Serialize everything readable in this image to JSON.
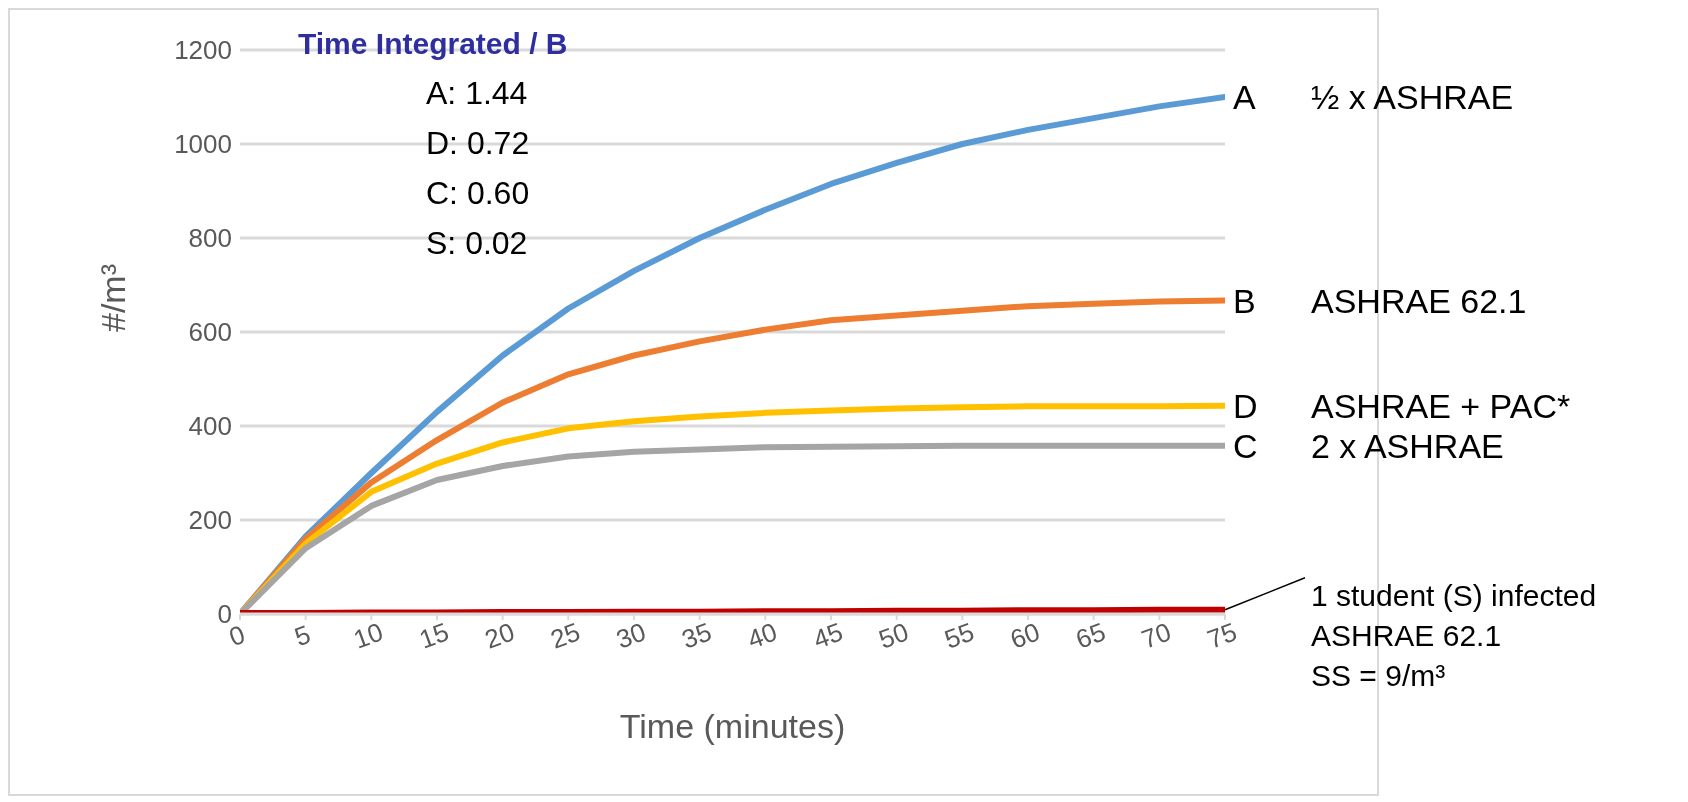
{
  "chart_data": {
    "type": "line",
    "title": "Time Integrated / B",
    "xlabel": "Time (minutes)",
    "ylabel": "#/m³",
    "x": [
      0,
      5,
      10,
      15,
      20,
      25,
      30,
      35,
      40,
      45,
      50,
      55,
      60,
      65,
      70,
      75
    ],
    "series": [
      {
        "name": "A",
        "color": "#5b9bd5",
        "values": [
          0,
          165,
          300,
          430,
          550,
          650,
          730,
          800,
          860,
          915,
          960,
          1000,
          1030,
          1055,
          1080,
          1100
        ]
      },
      {
        "name": "B",
        "color": "#ed7d31",
        "values": [
          0,
          160,
          280,
          370,
          450,
          510,
          550,
          580,
          605,
          625,
          635,
          645,
          655,
          660,
          665,
          667
        ]
      },
      {
        "name": "D",
        "color": "#ffc000",
        "values": [
          0,
          150,
          260,
          320,
          365,
          395,
          410,
          420,
          428,
          433,
          437,
          440,
          442,
          442,
          442,
          443
        ]
      },
      {
        "name": "C",
        "color": "#a5a5a5",
        "values": [
          0,
          140,
          230,
          285,
          315,
          335,
          345,
          350,
          355,
          356,
          357,
          358,
          358,
          358,
          358,
          358
        ]
      },
      {
        "color": "#c00000",
        "values": [
          2,
          2,
          3,
          3,
          4,
          4,
          5,
          5,
          6,
          6,
          7,
          7,
          8,
          8,
          9,
          9
        ]
      }
    ],
    "annotations": [
      "A: 1.44",
      "D: 0.72",
      "C: 0.60",
      "S: 0.02",
      "½ x ASHRAE",
      "ASHRAE 62.1",
      "ASHRAE + PAC*",
      "2 x ASHRAE",
      {
        "text": "1 student (S) infected\nASHRAE 62.1\nSS = 9/m³",
        "x": 75,
        "y": 9
      }
    ],
    "xlim": [
      0,
      75
    ],
    "xticks": [
      0,
      5,
      10,
      15,
      20,
      25,
      30,
      35,
      40,
      45,
      50,
      55,
      60,
      65,
      70,
      75
    ],
    "ylim": [
      0,
      1200
    ],
    "yticks": [
      0,
      200,
      400,
      600,
      800,
      1000,
      1200
    ],
    "grid": "y",
    "marker": "none",
    "line_style": "solid"
  }
}
